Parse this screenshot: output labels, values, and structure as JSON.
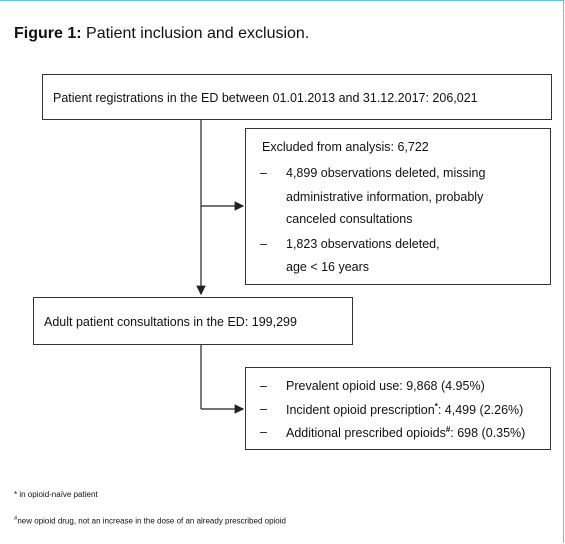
{
  "title": {
    "label": "Figure 1:",
    "text": "Patient inclusion and exclusion."
  },
  "nodes": [
    {
      "label": "Patient registrations in the ED between 01.01.2013 and 31.12.2017: 206,021"
    },
    {
      "title": "Excluded from analysis: 6,722",
      "items": [
        {
          "marker": "–",
          "lines": [
            "4,899 observations deleted, missing",
            "administrative information, probably",
            "canceled consultations"
          ]
        },
        {
          "marker": "–",
          "lines": [
            "1,823 observations deleted,",
            "age < 16 years"
          ]
        }
      ]
    },
    {
      "label": "Adult patient consultations in the ED: 199,299"
    },
    {
      "items": [
        {
          "marker": "–",
          "text": "Prevalent opioid use: 9,868 (4.95%)"
        },
        {
          "marker": "–",
          "text": "Incident opioid prescription",
          "note": "*",
          "value": ": 4,499 (2.26%)"
        },
        {
          "marker": "–",
          "text": "Additional prescribed opioids",
          "note": "#",
          "value": ": 698 (0.35%)"
        }
      ]
    }
  ],
  "footnotes": [
    {
      "text": "* in opioid-naïve patient"
    },
    {
      "mark": "#",
      "text": "new opioid drug, not an increase in the dose of an already prescribed opioid"
    }
  ]
}
